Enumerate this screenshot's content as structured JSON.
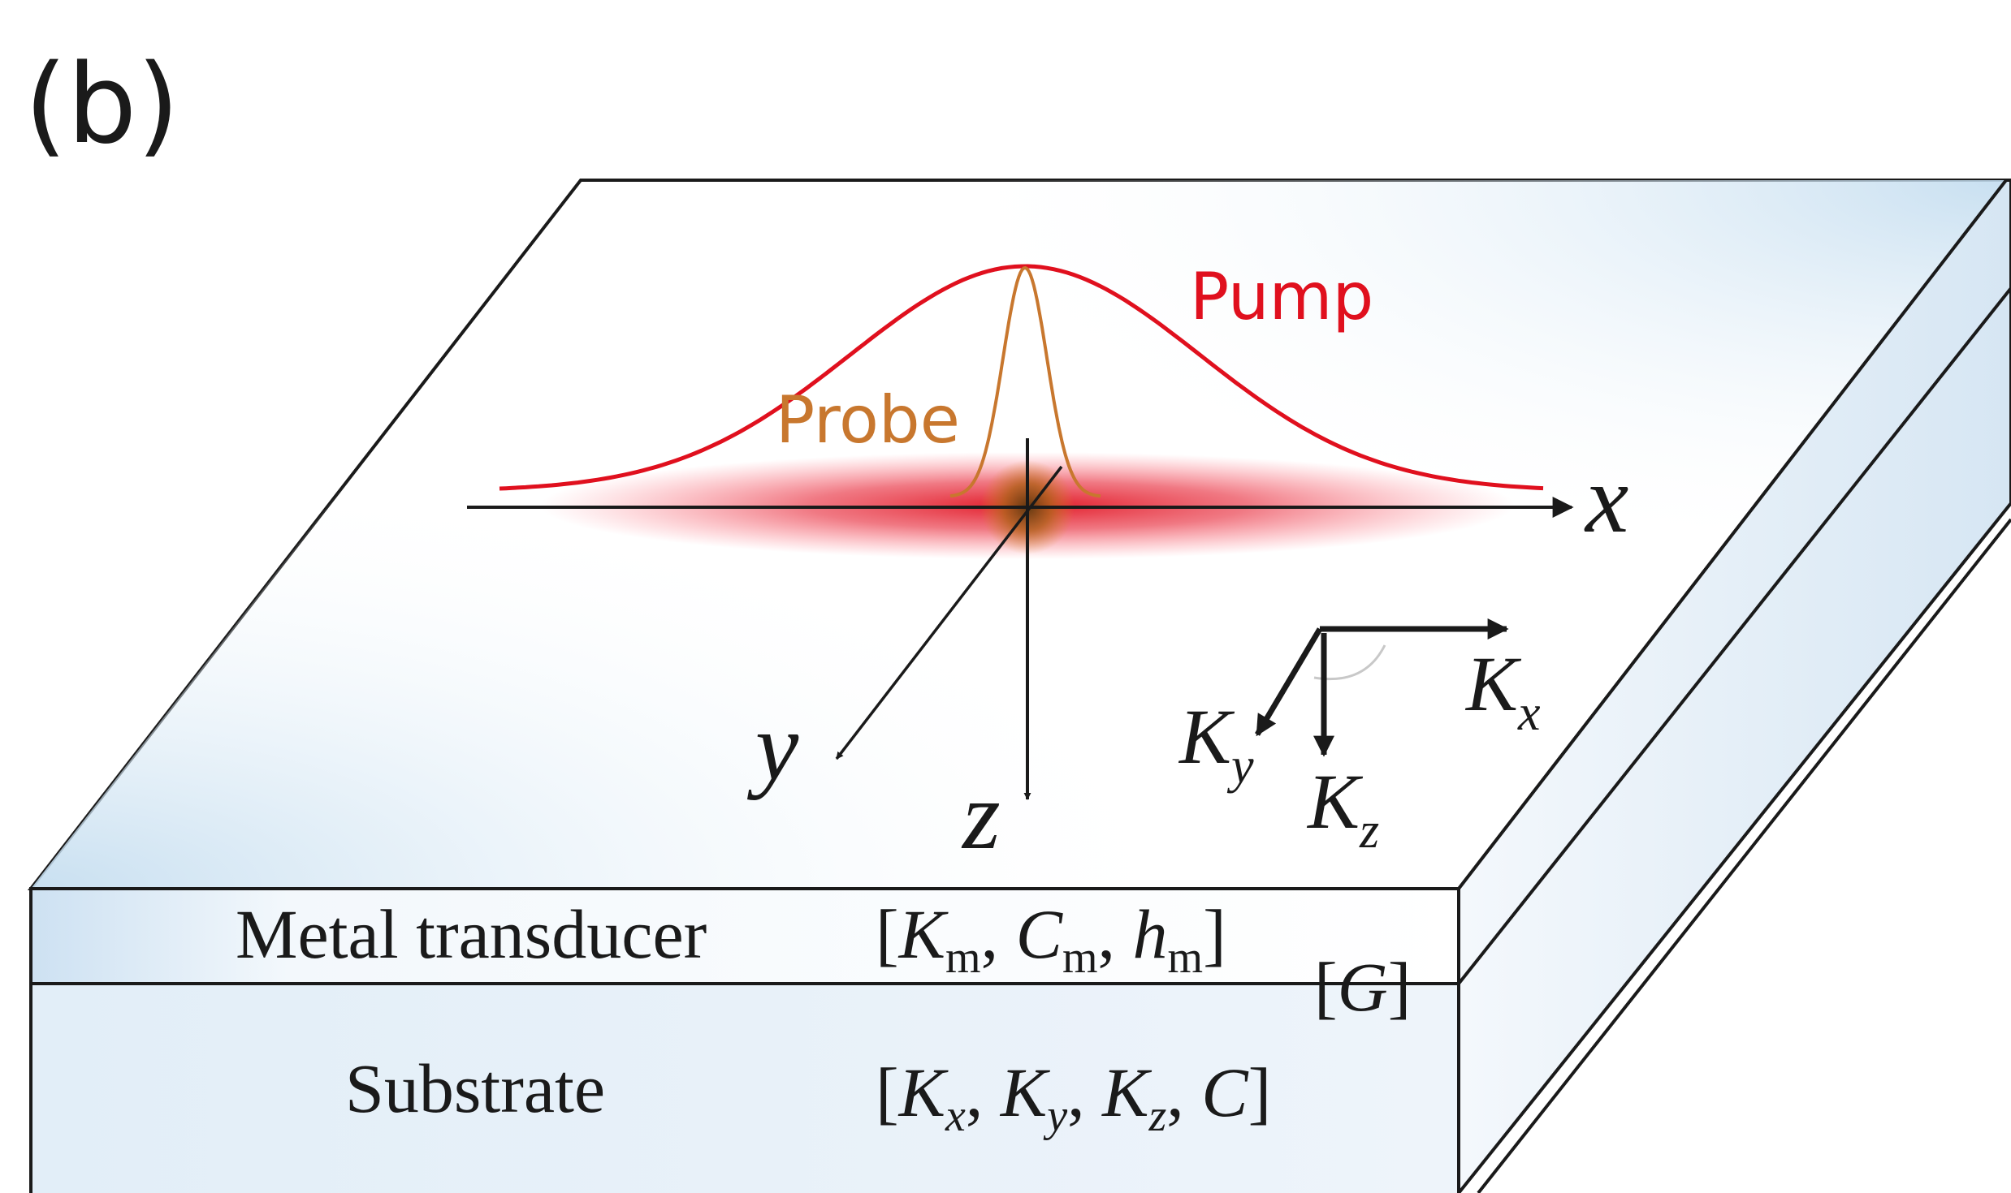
{
  "panel_label": "(b)",
  "beams": {
    "pump": {
      "label": "Pump",
      "color": "#e0101e"
    },
    "probe": {
      "label": "Probe",
      "color": "#c8772e"
    }
  },
  "coordinate_axes": {
    "x": "x",
    "y": "y",
    "z": "z"
  },
  "conductivity_axes": {
    "kx": {
      "base": "K",
      "sub": "x"
    },
    "ky": {
      "base": "K",
      "sub": "y"
    },
    "kz": {
      "base": "K",
      "sub": "z"
    }
  },
  "layers": {
    "transducer": {
      "name": "Metal transducer",
      "props": [
        {
          "base": "K",
          "sub": "m"
        },
        {
          "base": "C",
          "sub": "m"
        },
        {
          "base": "h",
          "sub": "m"
        }
      ]
    },
    "interface": {
      "label": "G"
    },
    "substrate": {
      "name": "Substrate",
      "props": [
        {
          "base": "K",
          "sub": "x"
        },
        {
          "base": "K",
          "sub": "y"
        },
        {
          "base": "K",
          "sub": "z"
        },
        {
          "base": "C",
          "sub": ""
        }
      ]
    }
  },
  "colors": {
    "slab_tint": "#d4e6f4",
    "outline": "#1a1a1a"
  }
}
